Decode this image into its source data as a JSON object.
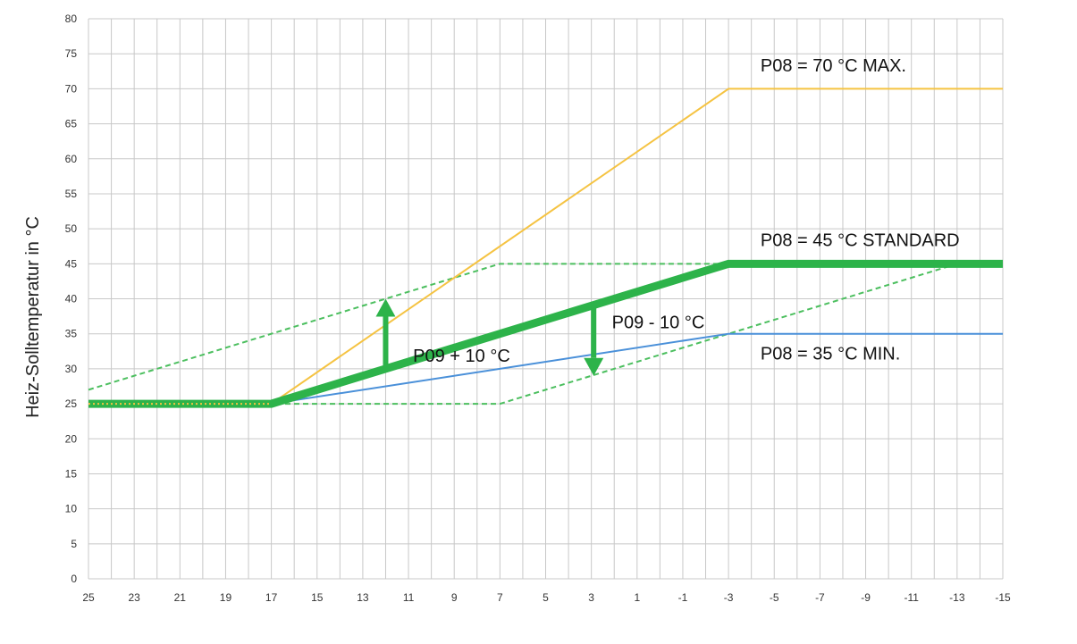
{
  "chart_data": {
    "type": "line",
    "title": "",
    "xlabel": "",
    "ylabel": "Heiz-Solltemperatur in °C",
    "xlim": [
      25,
      -15
    ],
    "ylim": [
      0,
      80
    ],
    "x_ticks": [
      "25",
      "23",
      "21",
      "19",
      "17",
      "15",
      "13",
      "11",
      "9",
      "7",
      "5",
      "3",
      "1",
      "-1",
      "-3",
      "-5",
      "-7",
      "-9",
      "-11",
      "-13",
      "-15"
    ],
    "y_ticks": [
      "0",
      "5",
      "10",
      "15",
      "20",
      "25",
      "30",
      "35",
      "40",
      "45",
      "50",
      "55",
      "60",
      "65",
      "70",
      "75",
      "80"
    ],
    "grid": true,
    "legend": "none",
    "series": [
      {
        "name": "P08 = 70 °C MAX.",
        "color": "#f5c342",
        "style": "solid",
        "width": 2,
        "x": [
          17,
          -3,
          -15
        ],
        "y": [
          25,
          70,
          70
        ]
      },
      {
        "name": "P08 = 45 °C STANDARD",
        "color": "#2db34a",
        "style": "solid",
        "width": 9,
        "x": [
          25,
          17,
          -3,
          -15
        ],
        "y": [
          25,
          25,
          45,
          45
        ]
      },
      {
        "name": "P08 = 35 °C MIN.",
        "color": "#4a90d9",
        "style": "solid",
        "width": 2,
        "x": [
          17,
          -3,
          -15
        ],
        "y": [
          25,
          35,
          35
        ]
      },
      {
        "color": "#4cbf5f",
        "style": "dashed",
        "width": 2,
        "x": [
          25,
          7,
          -3
        ],
        "y": [
          27,
          45,
          45
        ]
      },
      {
        "color": "#4cbf5f",
        "style": "dashed",
        "width": 2,
        "x": [
          25,
          7,
          -13
        ],
        "y": [
          25,
          25,
          45
        ]
      }
    ],
    "arrows": [
      {
        "label": "P09 + 10 °C",
        "color": "#2db34a",
        "x": 12,
        "y_from": 30.5,
        "y_to": 40
      },
      {
        "label": "P09 - 10 °C",
        "color": "#2db34a",
        "x": 2.9,
        "y_from": 39,
        "y_to": 29
      }
    ],
    "annotations": [
      {
        "text": "P08 = 70 °C MAX.",
        "x": -4.4,
        "y": 72.5
      },
      {
        "text": "P08 = 45 °C STANDARD",
        "x": -4.4,
        "y": 47.5
      },
      {
        "text": "P08 = 35 °C MIN.",
        "x": -4.4,
        "y": 31.3
      },
      {
        "text": "P09 + 10 °C",
        "x": 10.8,
        "y": 31
      },
      {
        "text": "P09 - 10 °C",
        "x": 2.1,
        "y": 35.8
      }
    ]
  }
}
